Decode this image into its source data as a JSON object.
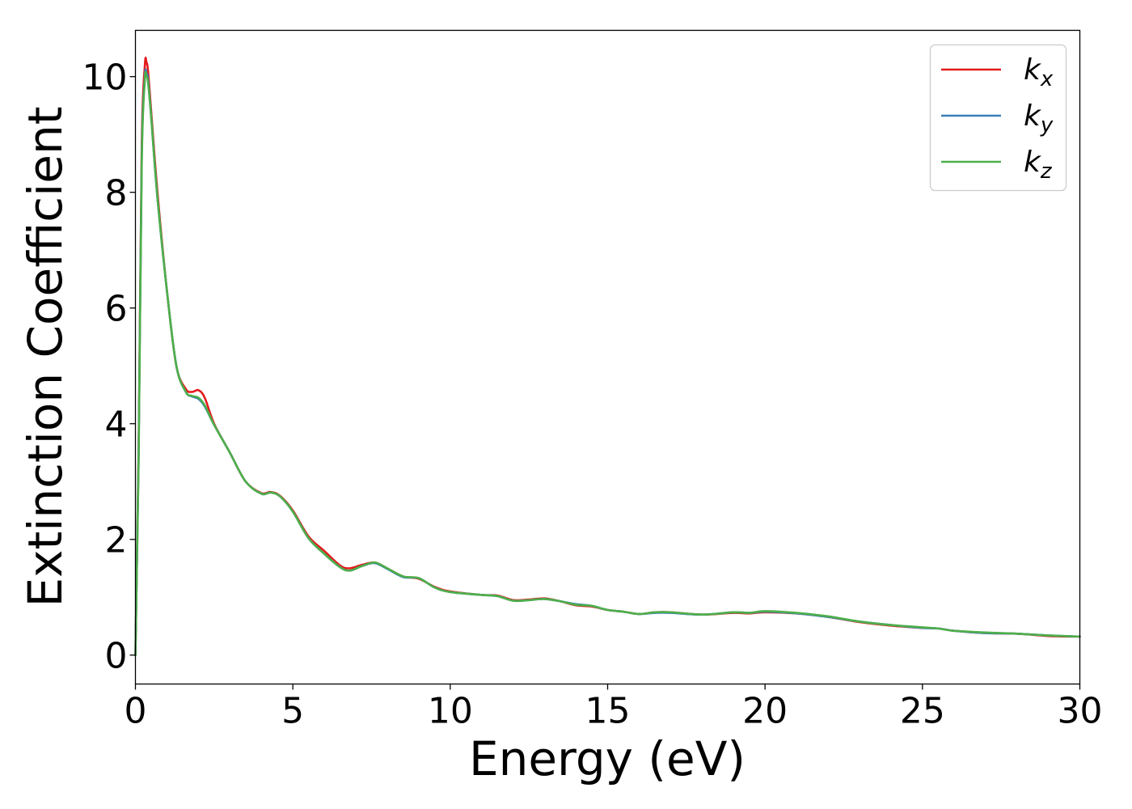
{
  "chart_data": {
    "type": "line",
    "xlabel": "Energy (eV)",
    "ylabel": "Extinction Coefficient",
    "xlim": [
      0,
      30
    ],
    "ylim": [
      -0.5,
      10.8
    ],
    "x_ticks": [
      0,
      5,
      10,
      15,
      20,
      25,
      30
    ],
    "y_ticks": [
      0,
      2,
      4,
      6,
      8,
      10
    ],
    "grid": false,
    "legend_position": "top-right",
    "series": [
      {
        "name": "k",
        "subscript": "x",
        "color": "#e41a1c",
        "x": [
          0,
          0.1,
          0.2,
          0.3,
          0.35,
          0.4,
          0.5,
          0.7,
          1.0,
          1.3,
          1.6,
          1.8,
          2.0,
          2.2,
          2.5,
          3.0,
          3.5,
          4.0,
          4.3,
          4.6,
          5.0,
          5.5,
          6.0,
          6.5,
          6.8,
          7.2,
          7.6,
          8.0,
          8.5,
          9.0,
          9.5,
          10.0,
          11.0,
          11.5,
          12.0,
          12.5,
          13.0,
          13.5,
          14.0,
          14.5,
          15.0,
          15.5,
          16.0,
          16.5,
          17.0,
          18.0,
          19.0,
          19.5,
          20.0,
          21.0,
          22.0,
          23.0,
          24.0,
          25.0,
          25.5,
          26.0,
          27.0,
          28.0,
          29.0,
          30.0
        ],
        "y": [
          0,
          3.5,
          8.8,
          10.2,
          10.25,
          10.1,
          9.4,
          8.0,
          6.3,
          5.0,
          4.6,
          4.55,
          4.58,
          4.45,
          4.0,
          3.5,
          3.0,
          2.8,
          2.82,
          2.75,
          2.5,
          2.05,
          1.8,
          1.55,
          1.5,
          1.56,
          1.6,
          1.5,
          1.36,
          1.32,
          1.18,
          1.1,
          1.04,
          1.03,
          0.95,
          0.96,
          0.98,
          0.93,
          0.86,
          0.84,
          0.78,
          0.75,
          0.71,
          0.74,
          0.74,
          0.7,
          0.73,
          0.72,
          0.74,
          0.72,
          0.66,
          0.57,
          0.51,
          0.47,
          0.46,
          0.42,
          0.38,
          0.37,
          0.33,
          0.32
        ]
      },
      {
        "name": "k",
        "subscript": "y",
        "color": "#377eb8",
        "x": [
          0,
          0.1,
          0.2,
          0.3,
          0.35,
          0.4,
          0.5,
          0.7,
          1.0,
          1.3,
          1.6,
          1.8,
          2.0,
          2.2,
          2.5,
          3.0,
          3.5,
          4.0,
          4.3,
          4.6,
          5.0,
          5.5,
          6.0,
          6.5,
          6.8,
          7.2,
          7.6,
          8.0,
          8.5,
          9.0,
          9.5,
          10.0,
          11.0,
          11.5,
          12.0,
          12.5,
          13.0,
          13.5,
          14.0,
          14.5,
          15.0,
          15.5,
          16.0,
          16.5,
          17.0,
          18.0,
          19.0,
          19.5,
          20.0,
          21.0,
          22.0,
          23.0,
          24.0,
          25.0,
          25.5,
          26.0,
          27.0,
          28.0,
          29.0,
          30.0
        ],
        "y": [
          0,
          3.4,
          8.6,
          10.0,
          10.05,
          9.95,
          9.3,
          7.9,
          6.3,
          5.0,
          4.55,
          4.47,
          4.43,
          4.3,
          3.98,
          3.5,
          3.0,
          2.79,
          2.81,
          2.74,
          2.48,
          2.02,
          1.75,
          1.52,
          1.46,
          1.54,
          1.59,
          1.49,
          1.35,
          1.33,
          1.17,
          1.09,
          1.04,
          1.02,
          0.94,
          0.95,
          0.97,
          0.93,
          0.88,
          0.85,
          0.78,
          0.75,
          0.71,
          0.73,
          0.73,
          0.7,
          0.74,
          0.73,
          0.75,
          0.72,
          0.66,
          0.58,
          0.52,
          0.47,
          0.46,
          0.42,
          0.38,
          0.37,
          0.34,
          0.32
        ]
      },
      {
        "name": "k",
        "subscript": "z",
        "color": "#4daf4a",
        "x": [
          0,
          0.1,
          0.2,
          0.3,
          0.35,
          0.4,
          0.5,
          0.7,
          1.0,
          1.3,
          1.6,
          1.8,
          2.0,
          2.2,
          2.5,
          3.0,
          3.5,
          4.0,
          4.3,
          4.6,
          5.0,
          5.5,
          6.0,
          6.5,
          6.8,
          7.2,
          7.6,
          8.0,
          8.5,
          9.0,
          9.5,
          10.0,
          11.0,
          11.5,
          12.0,
          12.5,
          13.0,
          13.5,
          14.0,
          14.5,
          15.0,
          15.5,
          16.0,
          16.5,
          17.0,
          18.0,
          19.0,
          19.5,
          20.0,
          21.0,
          22.0,
          23.0,
          24.0,
          25.0,
          25.5,
          26.0,
          27.0,
          28.0,
          29.0,
          30.0
        ],
        "y": [
          0,
          3.3,
          8.5,
          9.95,
          10.0,
          9.9,
          9.3,
          7.9,
          6.3,
          5.0,
          4.55,
          4.48,
          4.45,
          4.32,
          3.98,
          3.5,
          3.0,
          2.79,
          2.81,
          2.74,
          2.48,
          2.02,
          1.75,
          1.52,
          1.46,
          1.54,
          1.6,
          1.5,
          1.36,
          1.33,
          1.17,
          1.09,
          1.04,
          1.02,
          0.94,
          0.95,
          0.97,
          0.93,
          0.87,
          0.85,
          0.78,
          0.75,
          0.71,
          0.74,
          0.74,
          0.7,
          0.74,
          0.73,
          0.76,
          0.73,
          0.67,
          0.58,
          0.52,
          0.48,
          0.46,
          0.42,
          0.39,
          0.37,
          0.34,
          0.32
        ]
      }
    ]
  }
}
